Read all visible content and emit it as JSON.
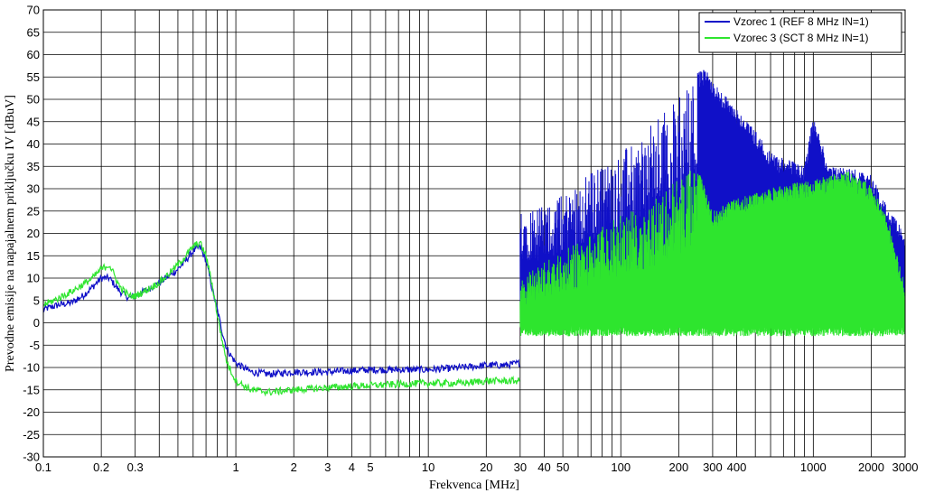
{
  "chart_data": {
    "type": "line",
    "xlabel": "Frekvenca [MHz]",
    "ylabel": "Prevodne emisije na napajalnem priključku IV [dBuV]",
    "x_scale": "log",
    "xlim": [
      0.1,
      3000
    ],
    "ylim": [
      -30,
      70
    ],
    "grid": true,
    "legend_position": "top-right",
    "x_ticks": [
      {
        "value": 0.1,
        "label": "0.1"
      },
      {
        "value": 0.2,
        "label": "0.2"
      },
      {
        "value": 0.3,
        "label": "0.3"
      },
      {
        "value": 1,
        "label": "1"
      },
      {
        "value": 2,
        "label": "2"
      },
      {
        "value": 3,
        "label": "3"
      },
      {
        "value": 4,
        "label": "4"
      },
      {
        "value": 5,
        "label": "5"
      },
      {
        "value": 10,
        "label": "10"
      },
      {
        "value": 20,
        "label": "20"
      },
      {
        "value": 30,
        "label": "30"
      },
      {
        "value": 40,
        "label": "40"
      },
      {
        "value": 50,
        "label": "50"
      },
      {
        "value": 100,
        "label": "100"
      },
      {
        "value": 200,
        "label": "200"
      },
      {
        "value": 300,
        "label": "300"
      },
      {
        "value": 400,
        "label": "400"
      },
      {
        "value": 1000,
        "label": "1000"
      },
      {
        "value": 2000,
        "label": "2000"
      },
      {
        "value": 3000,
        "label": "3000"
      }
    ],
    "y_ticks": [
      -30,
      -25,
      -20,
      -15,
      -10,
      -5,
      0,
      5,
      10,
      15,
      20,
      25,
      30,
      35,
      40,
      45,
      50,
      55,
      60,
      65,
      70
    ],
    "series": [
      {
        "name": "Vzorec 1 (REF 8 MHz IN=1)",
        "color": "#1010c8",
        "x": [
          0.1,
          0.12,
          0.14,
          0.16,
          0.18,
          0.2,
          0.22,
          0.25,
          0.28,
          0.3,
          0.35,
          0.4,
          0.45,
          0.5,
          0.55,
          0.6,
          0.65,
          0.7,
          0.75,
          0.8,
          0.85,
          0.9,
          1.0,
          1.2,
          1.5,
          2,
          3,
          5,
          10,
          15,
          20,
          25,
          29.9
        ],
        "y": [
          3,
          4,
          4.5,
          6,
          8,
          10,
          10,
          7,
          5.5,
          6,
          7.5,
          9,
          10.5,
          12,
          14,
          16,
          17,
          14,
          8,
          3,
          -2,
          -6,
          -9,
          -11,
          -11.5,
          -11,
          -11,
          -10.5,
          -10.5,
          -10,
          -9.5,
          -9.5,
          -9
        ],
        "envelope_above_30MHz": {
          "floor": {
            "x": [
              30,
              50,
              100,
              200,
              300,
              500,
              1000,
              2000,
              3000
            ],
            "y": [
              1,
              1,
              0,
              0,
              -1,
              -1,
              -1,
              -1,
              -1
            ]
          },
          "peaks": {
            "x": [
              30,
              40,
              50,
              70,
              100,
              150,
              200,
              250,
              280,
              300,
              400,
              500,
              600,
              700,
              800,
              900,
              1000,
              1200,
              1500,
              2000,
              2500,
              3000
            ],
            "y": [
              27,
              26,
              29,
              34,
              38,
              45,
              51,
              56,
              57,
              54,
              48,
              43,
              38,
              37,
              36,
              35,
              47,
              35,
              35,
              33,
              25,
              20
            ]
          }
        }
      },
      {
        "name": "Vzorec 3 (SCT 8 MHz IN=1)",
        "color": "#2ee52e",
        "x": [
          0.1,
          0.12,
          0.14,
          0.16,
          0.18,
          0.2,
          0.22,
          0.25,
          0.28,
          0.3,
          0.35,
          0.4,
          0.45,
          0.5,
          0.55,
          0.6,
          0.65,
          0.7,
          0.75,
          0.8,
          0.85,
          0.9,
          1.0,
          1.2,
          1.5,
          2,
          3,
          5,
          10,
          15,
          20,
          25,
          29.9
        ],
        "y": [
          4,
          5.5,
          7,
          8.5,
          10,
          12,
          13,
          8,
          6,
          6,
          7.5,
          9,
          11,
          13,
          15,
          17,
          18,
          15,
          9,
          2,
          -4,
          -9,
          -13,
          -15,
          -15.5,
          -15,
          -14.5,
          -14,
          -13.5,
          -13.5,
          -13,
          -13,
          -13
        ],
        "envelope_above_30MHz": {
          "floor": {
            "x": [
              30,
              50,
              100,
              200,
              300,
              500,
              1000,
              2000,
              3000
            ],
            "y": [
              -3,
              -3,
              -3,
              -3,
              -3,
              -3,
              -3,
              -3,
              -3
            ]
          },
          "peaks": {
            "x": [
              30,
              40,
              50,
              70,
              100,
              150,
              200,
              250,
              300,
              400,
              500,
              700,
              1000,
              1500,
              2000,
              2500,
              3000
            ],
            "y": [
              10,
              14,
              16,
              20,
              24,
              28,
              33,
              35,
              25,
              28,
              29,
              31,
              32,
              34,
              31,
              22,
              8
            ]
          }
        }
      }
    ]
  }
}
